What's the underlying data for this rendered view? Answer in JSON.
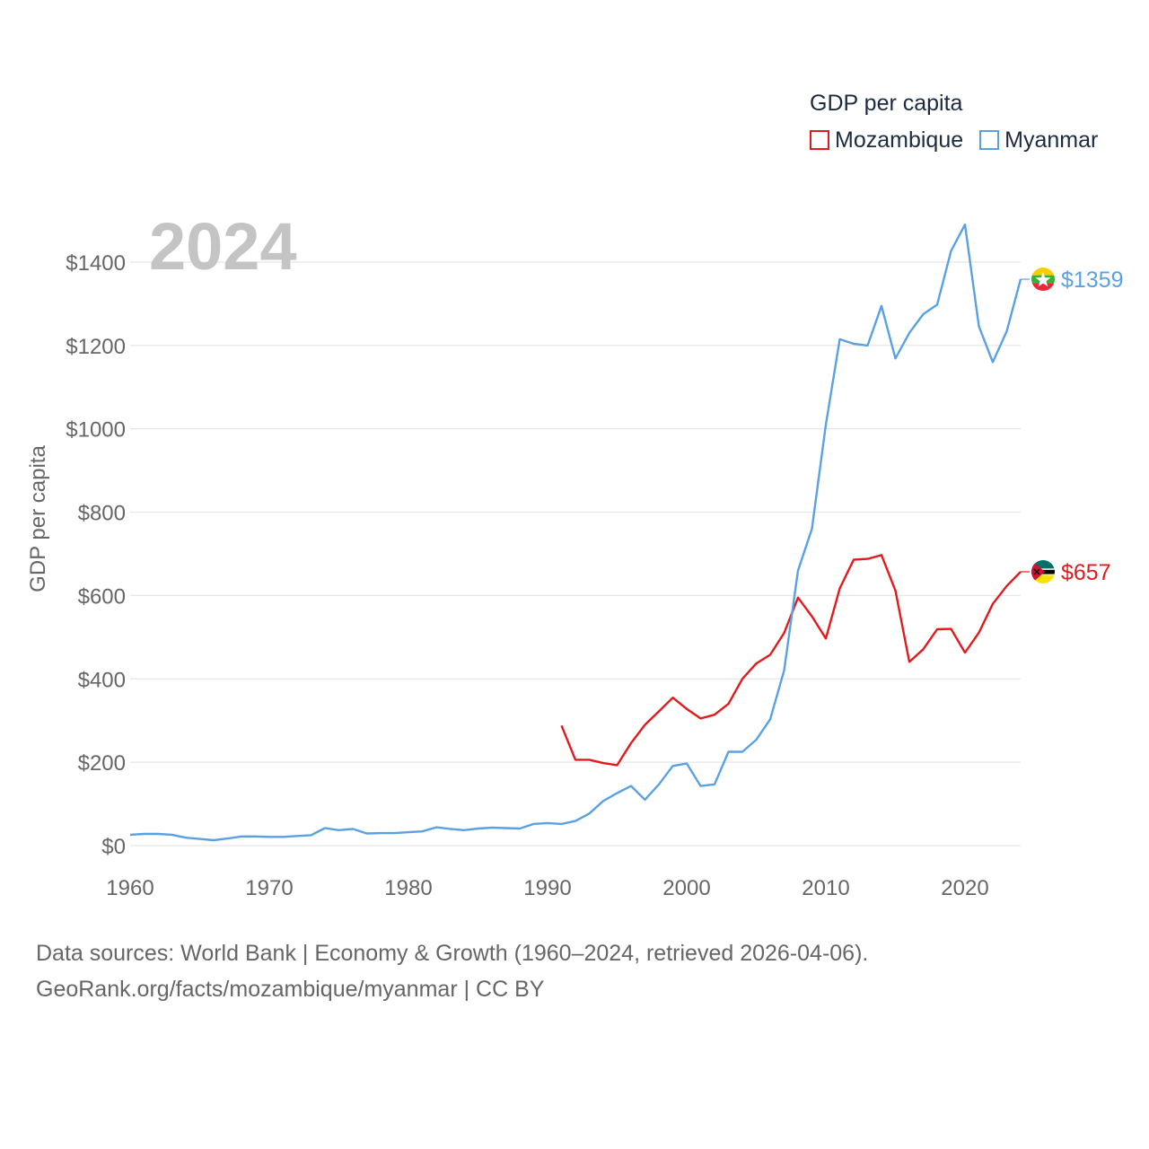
{
  "chart_data": {
    "type": "line",
    "title": "GDP per capita",
    "watermark_year": "2024",
    "ylabel": "GDP per capita",
    "xlabel": "",
    "xlim": [
      1960,
      2024
    ],
    "ylim": [
      0,
      1500
    ],
    "y_ticks": [
      0,
      200,
      400,
      600,
      800,
      1000,
      1200,
      1400
    ],
    "y_tick_labels": [
      "$0",
      "$200",
      "$400",
      "$600",
      "$800",
      "$1000",
      "$1200",
      "$1400"
    ],
    "x_ticks": [
      1960,
      1970,
      1980,
      1990,
      2000,
      2010,
      2020
    ],
    "x_tick_labels": [
      "1960",
      "1970",
      "1980",
      "1990",
      "2000",
      "2010",
      "2020"
    ],
    "grid": true,
    "legend_position": "top-right",
    "series": [
      {
        "name": "Mozambique",
        "color": "#e31a1c",
        "end_label": "$657",
        "flag_icon": "mozambique-flag-icon",
        "x": [
          1991,
          1992,
          1993,
          1994,
          1995,
          1996,
          1997,
          1998,
          1999,
          2000,
          2001,
          2002,
          2003,
          2004,
          2005,
          2006,
          2007,
          2008,
          2009,
          2010,
          2011,
          2012,
          2013,
          2014,
          2015,
          2016,
          2017,
          2018,
          2019,
          2020,
          2021,
          2022,
          2023,
          2024
        ],
        "values": [
          288,
          206,
          206,
          198,
          193,
          246,
          290,
          322,
          355,
          328,
          305,
          314,
          340,
          400,
          437,
          458,
          510,
          595,
          550,
          497,
          617,
          686,
          688,
          697,
          612,
          441,
          471,
          519,
          520,
          463,
          511,
          580,
          623,
          657
        ]
      },
      {
        "name": "Myanmar",
        "color": "#5aa1e3",
        "end_label": "$1359",
        "flag_icon": "myanmar-flag-icon",
        "x": [
          1960,
          1961,
          1962,
          1963,
          1964,
          1965,
          1966,
          1967,
          1968,
          1969,
          1970,
          1971,
          1972,
          1973,
          1974,
          1975,
          1976,
          1977,
          1978,
          1979,
          1980,
          1981,
          1982,
          1983,
          1984,
          1985,
          1986,
          1987,
          1988,
          1989,
          1990,
          1991,
          1992,
          1993,
          1994,
          1995,
          1996,
          1997,
          1998,
          1999,
          2000,
          2001,
          2002,
          2003,
          2004,
          2005,
          2006,
          2007,
          2008,
          2009,
          2010,
          2011,
          2012,
          2013,
          2014,
          2015,
          2016,
          2017,
          2018,
          2019,
          2020,
          2021,
          2022,
          2023,
          2024
        ],
        "values": [
          26,
          28,
          28,
          26,
          19,
          16,
          13,
          17,
          22,
          22,
          21,
          21,
          23,
          25,
          42,
          37,
          40,
          29,
          30,
          30,
          32,
          34,
          44,
          40,
          37,
          41,
          43,
          42,
          41,
          52,
          54,
          52,
          59,
          77,
          107,
          126,
          143,
          110,
          147,
          191,
          197,
          143,
          147,
          225,
          225,
          254,
          303,
          420,
          660,
          760,
          1010,
          1215,
          1204,
          1200,
          1295,
          1169,
          1230,
          1275,
          1298,
          1427,
          1490,
          1246,
          1160,
          1234,
          1359
        ]
      }
    ]
  },
  "footer": {
    "sources": "Data sources: World Bank | Economy & Growth (1960–2024, retrieved 2026-04-06).",
    "attribution": "GeoRank.org/facts/mozambique/myanmar | CC BY"
  }
}
